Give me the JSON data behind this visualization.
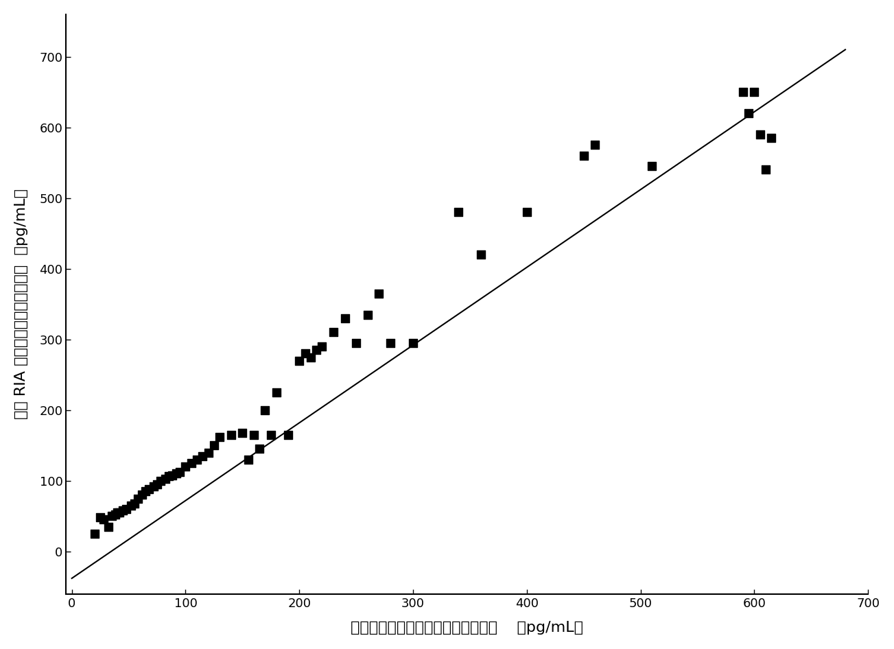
{
  "x_data": [
    20,
    25,
    28,
    32,
    35,
    38,
    40,
    42,
    45,
    48,
    52,
    55,
    58,
    62,
    65,
    68,
    72,
    75,
    78,
    82,
    85,
    88,
    92,
    95,
    100,
    105,
    110,
    115,
    120,
    125,
    130,
    140,
    150,
    155,
    160,
    165,
    170,
    175,
    180,
    190,
    200,
    205,
    210,
    215,
    220,
    230,
    240,
    250,
    260,
    270,
    280,
    300,
    340,
    360,
    400,
    450,
    460,
    510,
    590,
    595,
    600,
    605,
    610,
    615
  ],
  "y_data": [
    25,
    48,
    45,
    35,
    50,
    52,
    55,
    55,
    58,
    60,
    65,
    68,
    75,
    80,
    85,
    88,
    92,
    95,
    100,
    103,
    107,
    108,
    110,
    112,
    120,
    125,
    130,
    135,
    140,
    150,
    162,
    165,
    168,
    130,
    165,
    145,
    200,
    165,
    225,
    165,
    270,
    280,
    275,
    285,
    290,
    310,
    330,
    295,
    335,
    365,
    295,
    295,
    480,
    420,
    480,
    560,
    575,
    545,
    650,
    620,
    650,
    590,
    540,
    585
  ],
  "line_x": [
    0,
    680
  ],
  "line_y": [
    -38,
    710
  ],
  "xlim": [
    -5,
    700
  ],
  "ylim": [
    -60,
    760
  ],
  "xticks": [
    0,
    100,
    200,
    300,
    400,
    500,
    600,
    700
  ],
  "yticks": [
    0,
    100,
    200,
    300,
    400,
    500,
    600,
    700
  ],
  "xlabel": "使用本发明试剂盒测得的雌二醇浓度    （pg/mL）",
  "ylabel_parts": [
    "使用 RIA 试剂盒测得的雌二醇浓度  （pg/mL）"
  ],
  "marker_color": "#000000",
  "line_color": "#000000",
  "bg_color": "#ffffff",
  "marker_size": 80,
  "line_width": 1.5,
  "font_size_label": 16,
  "font_size_tick": 13
}
